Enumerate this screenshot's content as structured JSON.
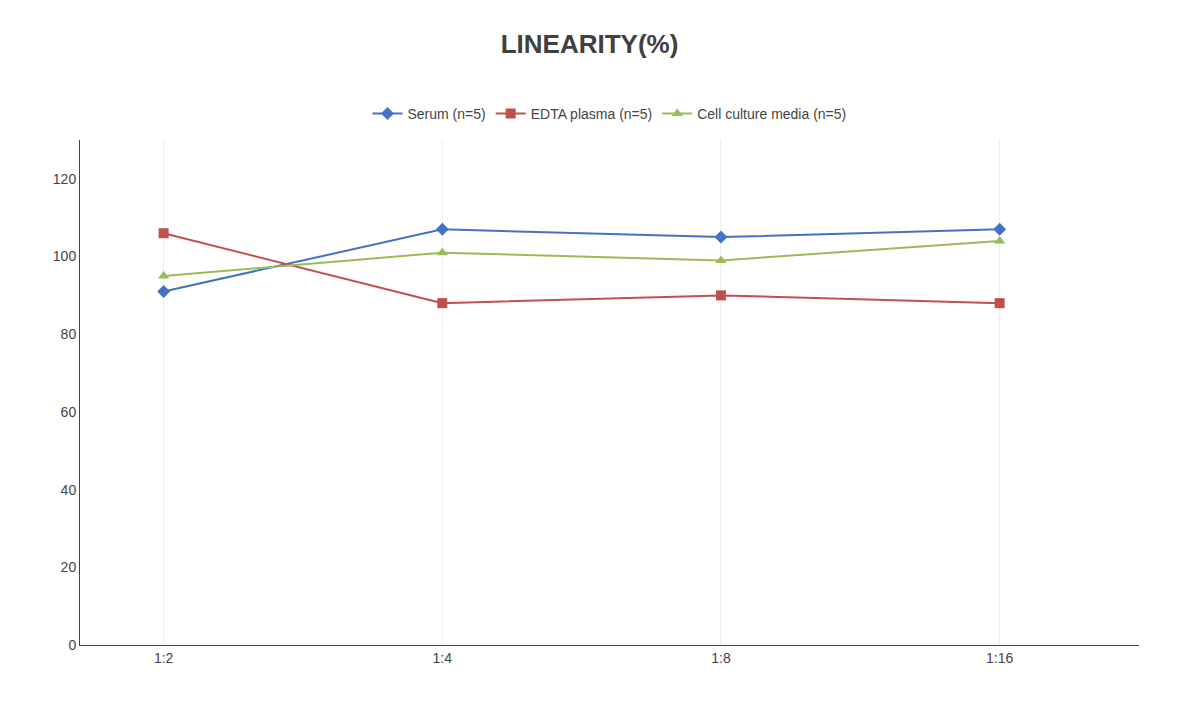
{
  "chart_data": {
    "type": "line",
    "title": "LINEARITY(%)",
    "categories": [
      "1:2",
      "1:4",
      "1:8",
      "1:16"
    ],
    "series": [
      {
        "name": "Serum (n=5)",
        "color": "#4472C4",
        "marker": "diamond",
        "values": [
          91,
          107,
          105,
          107
        ]
      },
      {
        "name": "EDTA plasma (n=5)",
        "color": "#C0504D",
        "marker": "square",
        "values": [
          106,
          88,
          90,
          88
        ]
      },
      {
        "name": "Cell culture media (n=5)",
        "color": "#9BBB59",
        "marker": "triangle-up",
        "values": [
          95,
          101,
          99,
          104
        ]
      }
    ],
    "ylim": [
      0,
      130
    ],
    "yticks": [
      0,
      20,
      40,
      60,
      80,
      100,
      120
    ],
    "grid": "x",
    "legend": "top"
  }
}
